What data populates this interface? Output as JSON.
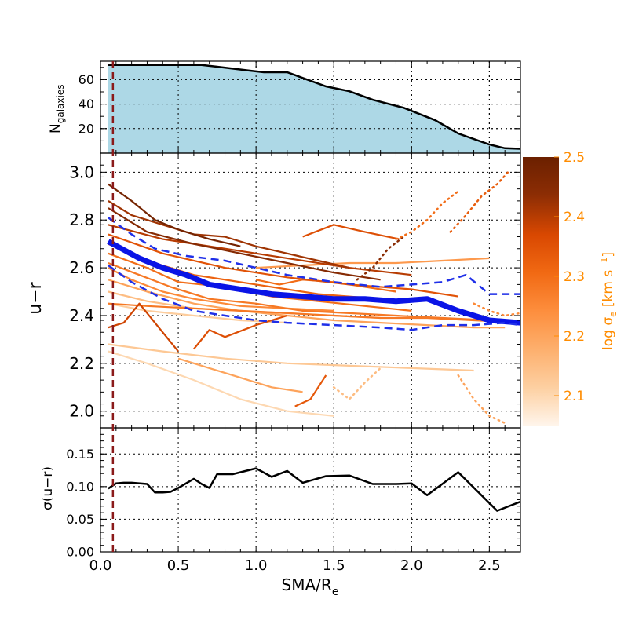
{
  "chart_data": [
    {
      "panel": "top",
      "type": "area",
      "ylabel_main": "N",
      "ylabel_sub": "galaxies",
      "xlim": [
        0,
        2.7
      ],
      "ylim": [
        0,
        75
      ],
      "yticks": [
        20,
        40,
        60
      ],
      "ytick_labels": [
        "20",
        "40",
        "60"
      ],
      "grid": true,
      "fill_color": "#add8e6",
      "line_color": "#000000",
      "x": [
        0.05,
        0.65,
        0.75,
        0.95,
        1.05,
        1.2,
        1.45,
        1.6,
        1.75,
        1.95,
        2.15,
        2.3,
        2.5,
        2.6,
        2.7
      ],
      "y": [
        72,
        72,
        70.5,
        67.5,
        66,
        66,
        54.5,
        50.5,
        43.5,
        37,
        27,
        16,
        7,
        4,
        3.5
      ]
    },
    {
      "panel": "middle",
      "type": "line",
      "ylabel": "u−r",
      "xlim": [
        0,
        2.7
      ],
      "ylim": [
        1.93,
        3.08
      ],
      "yticks": [
        2.0,
        2.2,
        2.4,
        2.6,
        2.8,
        3.0
      ],
      "ytick_labels": [
        "2.0",
        "2.2",
        "2.4",
        "2.6",
        "2.8",
        "3.0"
      ],
      "grid": true,
      "series": [
        {
          "role": "median",
          "color": "#0a14e6",
          "x": [
            0.05,
            0.25,
            0.4,
            0.55,
            0.7,
            0.9,
            1.1,
            1.3,
            1.5,
            1.7,
            1.9,
            2.1,
            2.3,
            2.5,
            2.7
          ],
          "y": [
            2.71,
            2.64,
            2.6,
            2.57,
            2.53,
            2.51,
            2.49,
            2.48,
            2.47,
            2.47,
            2.46,
            2.47,
            2.42,
            2.38,
            2.37
          ]
        },
        {
          "role": "upper-quartile",
          "color": "#1f2fe8",
          "x": [
            0.05,
            0.2,
            0.35,
            0.55,
            0.8,
            1.0,
            1.2,
            1.5,
            1.8,
            2.0,
            2.2,
            2.35,
            2.5,
            2.7
          ],
          "y": [
            2.81,
            2.74,
            2.68,
            2.65,
            2.63,
            2.6,
            2.57,
            2.54,
            2.52,
            2.53,
            2.54,
            2.57,
            2.49,
            2.49
          ]
        },
        {
          "role": "lower-quartile",
          "color": "#1f2fe8",
          "x": [
            0.05,
            0.2,
            0.4,
            0.6,
            0.8,
            1.0,
            1.2,
            1.5,
            1.8,
            2.0,
            2.2,
            2.4,
            2.6,
            2.7
          ],
          "y": [
            2.61,
            2.54,
            2.47,
            2.42,
            2.4,
            2.38,
            2.37,
            2.36,
            2.35,
            2.34,
            2.36,
            2.36,
            2.37,
            2.36
          ]
        }
      ],
      "galaxy_tracks": [
        {
          "sigma": 2.48,
          "x": [
            0.05,
            0.2,
            0.35,
            0.5,
            0.7,
            0.9
          ],
          "y": [
            2.95,
            2.88,
            2.8,
            2.76,
            2.72,
            2.69
          ]
        },
        {
          "sigma": 2.45,
          "x": [
            0.05,
            0.3,
            0.6,
            0.9,
            1.2,
            1.5,
            1.8
          ],
          "y": [
            2.85,
            2.75,
            2.7,
            2.66,
            2.62,
            2.58,
            2.55
          ]
        },
        {
          "sigma": 2.4,
          "x": [
            0.05,
            0.4,
            0.8,
            1.2,
            1.6,
            2.0
          ],
          "y": [
            2.78,
            2.72,
            2.68,
            2.64,
            2.6,
            2.57
          ]
        },
        {
          "sigma": 2.35,
          "x": [
            0.05,
            0.4,
            0.8,
            1.2,
            1.6,
            2.0,
            2.3
          ],
          "y": [
            2.74,
            2.66,
            2.6,
            2.56,
            2.53,
            2.51,
            2.48
          ]
        },
        {
          "sigma": 2.32,
          "x": [
            0.05,
            0.3,
            0.6,
            1.0,
            1.4,
            1.8
          ],
          "y": [
            2.7,
            2.63,
            2.57,
            2.53,
            2.49,
            2.47
          ]
        },
        {
          "sigma": 2.3,
          "x": [
            0.05,
            0.3,
            0.5,
            0.8,
            1.1,
            1.4,
            1.7,
            2.0
          ],
          "y": [
            2.66,
            2.6,
            2.54,
            2.52,
            2.48,
            2.46,
            2.44,
            2.42
          ]
        },
        {
          "sigma": 2.28,
          "x": [
            0.05,
            0.25,
            0.45,
            0.7,
            1.0,
            1.3,
            1.6,
            1.9,
            2.2,
            2.5
          ],
          "y": [
            2.62,
            2.57,
            2.52,
            2.47,
            2.45,
            2.42,
            2.41,
            2.4,
            2.39,
            2.38
          ]
        },
        {
          "sigma": 2.25,
          "x": [
            0.05,
            0.2,
            0.4,
            0.6,
            0.9,
            1.2,
            1.5
          ],
          "y": [
            2.6,
            2.55,
            2.5,
            2.47,
            2.44,
            2.43,
            2.42
          ]
        },
        {
          "sigma": 2.2,
          "x": [
            0.05,
            0.3,
            0.6,
            0.9,
            1.2,
            1.5,
            1.8,
            2.1,
            2.4,
            2.6
          ],
          "y": [
            2.55,
            2.5,
            2.45,
            2.42,
            2.4,
            2.38,
            2.37,
            2.36,
            2.35,
            2.35
          ]
        },
        {
          "sigma": 2.15,
          "x": [
            0.05,
            0.3,
            0.6,
            0.9,
            1.2,
            1.5,
            1.8
          ],
          "y": [
            2.5,
            2.46,
            2.43,
            2.42,
            2.41,
            2.4,
            2.39
          ]
        },
        {
          "sigma": 2.12,
          "x": [
            0.05,
            0.3,
            0.6,
            0.9,
            1.2
          ],
          "y": [
            2.45,
            2.42,
            2.4,
            2.38,
            2.37
          ]
        },
        {
          "sigma": 2.38,
          "x": [
            0.05,
            0.15,
            0.25,
            0.4,
            0.5
          ],
          "y": [
            2.35,
            2.37,
            2.45,
            2.33,
            2.25
          ]
        },
        {
          "sigma": 2.36,
          "x": [
            0.6,
            0.7,
            0.8,
            1.0,
            1.2
          ],
          "y": [
            2.26,
            2.34,
            2.31,
            2.36,
            2.4
          ]
        },
        {
          "sigma": 2.34,
          "x": [
            1.25,
            1.35,
            1.45
          ],
          "y": [
            2.02,
            2.05,
            2.15
          ]
        },
        {
          "sigma": 2.36,
          "x": [
            1.3,
            1.5,
            1.7,
            1.92
          ],
          "y": [
            2.73,
            2.78,
            2.75,
            2.72
          ]
        },
        {
          "sigma": 2.3,
          "x": [
            1.0,
            1.15,
            1.3,
            1.5,
            1.7,
            1.9
          ],
          "y": [
            2.55,
            2.53,
            2.55,
            2.54,
            2.52,
            2.5
          ]
        },
        {
          "sigma": 2.13,
          "x": [
            0.05,
            0.4,
            0.8,
            1.2,
            1.6,
            2.0,
            2.4
          ],
          "y": [
            2.28,
            2.25,
            2.22,
            2.2,
            2.19,
            2.18,
            2.17
          ]
        },
        {
          "sigma": 2.1,
          "x": [
            0.05,
            0.3,
            0.6,
            0.9,
            1.2,
            1.5
          ],
          "y": [
            2.25,
            2.2,
            2.13,
            2.05,
            2.0,
            1.98
          ]
        },
        {
          "sigma": 2.2,
          "x": [
            0.5,
            0.7,
            0.9,
            1.1,
            1.3
          ],
          "y": [
            2.22,
            2.18,
            2.14,
            2.1,
            2.08
          ]
        },
        {
          "sigma": 2.28,
          "x": [
            0.05,
            0.3,
            0.6,
            0.9,
            1.2,
            1.5,
            1.8,
            2.1,
            2.4,
            2.7
          ],
          "y": [
            2.45,
            2.44,
            2.43,
            2.42,
            2.41,
            2.4,
            2.39,
            2.39,
            2.38,
            2.37
          ]
        },
        {
          "sigma": 2.22,
          "x": [
            1.0,
            1.3,
            1.6,
            1.9,
            2.2,
            2.5
          ],
          "y": [
            2.6,
            2.61,
            2.62,
            2.62,
            2.63,
            2.64
          ]
        },
        {
          "sigma": 2.42,
          "x": [
            0.05,
            0.2,
            0.4,
            0.6,
            0.8,
            1.0,
            1.2,
            1.4,
            1.6
          ],
          "y": [
            2.88,
            2.82,
            2.78,
            2.74,
            2.73,
            2.69,
            2.66,
            2.63,
            2.6
          ]
        }
      ],
      "dotted_tracks": [
        {
          "sigma": 2.33,
          "x": [
            2.25,
            2.35,
            2.45,
            2.55,
            2.62
          ],
          "y": [
            2.75,
            2.82,
            2.9,
            2.95,
            3.0
          ]
        },
        {
          "sigma": 2.44,
          "x": [
            1.65,
            1.75,
            1.85,
            1.95
          ],
          "y": [
            2.55,
            2.6,
            2.68,
            2.73
          ]
        },
        {
          "sigma": 2.3,
          "x": [
            1.9,
            2.0,
            2.1,
            2.2,
            2.3
          ],
          "y": [
            2.72,
            2.75,
            2.8,
            2.87,
            2.92
          ]
        },
        {
          "sigma": 2.25,
          "x": [
            2.4,
            2.5,
            2.6,
            2.7
          ],
          "y": [
            2.45,
            2.42,
            2.4,
            2.41
          ]
        },
        {
          "sigma": 2.2,
          "x": [
            2.3,
            2.4,
            2.5,
            2.6
          ],
          "y": [
            2.15,
            2.05,
            1.98,
            1.95
          ]
        },
        {
          "sigma": 2.15,
          "x": [
            1.5,
            1.6,
            1.7,
            1.8
          ],
          "y": [
            2.1,
            2.05,
            2.12,
            2.18
          ]
        }
      ]
    },
    {
      "panel": "bottom",
      "type": "line",
      "ylabel": "σ(u−r)",
      "xlabel_main": "SMA/R",
      "xlabel_sub": "e",
      "xlim": [
        0,
        2.7
      ],
      "ylim": [
        0,
        0.19
      ],
      "yticks": [
        0.0,
        0.05,
        0.1,
        0.15
      ],
      "ytick_labels": [
        "0.00",
        "0.05",
        "0.10",
        "0.15"
      ],
      "xticks": [
        0.0,
        0.5,
        1.0,
        1.5,
        2.0,
        2.5
      ],
      "xtick_labels": [
        "0.0",
        "0.5",
        "1.0",
        "1.5",
        "2.0",
        "2.5"
      ],
      "grid": true,
      "line_color": "#000000",
      "x": [
        0.05,
        0.1,
        0.15,
        0.2,
        0.3,
        0.35,
        0.4,
        0.45,
        0.5,
        0.6,
        0.65,
        0.7,
        0.75,
        0.85,
        1.0,
        1.1,
        1.2,
        1.3,
        1.45,
        1.6,
        1.75,
        1.9,
        2.0,
        2.1,
        2.3,
        2.55,
        2.7
      ],
      "y": [
        0.097,
        0.105,
        0.106,
        0.106,
        0.104,
        0.091,
        0.091,
        0.092,
        0.098,
        0.112,
        0.104,
        0.098,
        0.119,
        0.119,
        0.128,
        0.115,
        0.124,
        0.106,
        0.116,
        0.117,
        0.104,
        0.104,
        0.105,
        0.087,
        0.122,
        0.063,
        0.077
      ]
    }
  ],
  "reference_line": {
    "x": 0.08,
    "color": "#8b1a1a"
  },
  "colorbar": {
    "label_main": "log σ",
    "label_sub": "e",
    "label_units": "[km s",
    "label_exp": "−1",
    "label_close": "]",
    "vmin": 2.05,
    "vmax": 2.5,
    "ticks": [
      2.1,
      2.2,
      2.3,
      2.4,
      2.5
    ],
    "tick_labels": [
      "2.1",
      "2.2",
      "2.3",
      "2.4",
      "2.5"
    ],
    "text_color": "#ff8c00",
    "colormap": [
      "#fff5eb",
      "#fdd0a2",
      "#fdae6b",
      "#fd8d3c",
      "#f16913",
      "#d94801",
      "#8c2d04",
      "#6b2000"
    ]
  }
}
